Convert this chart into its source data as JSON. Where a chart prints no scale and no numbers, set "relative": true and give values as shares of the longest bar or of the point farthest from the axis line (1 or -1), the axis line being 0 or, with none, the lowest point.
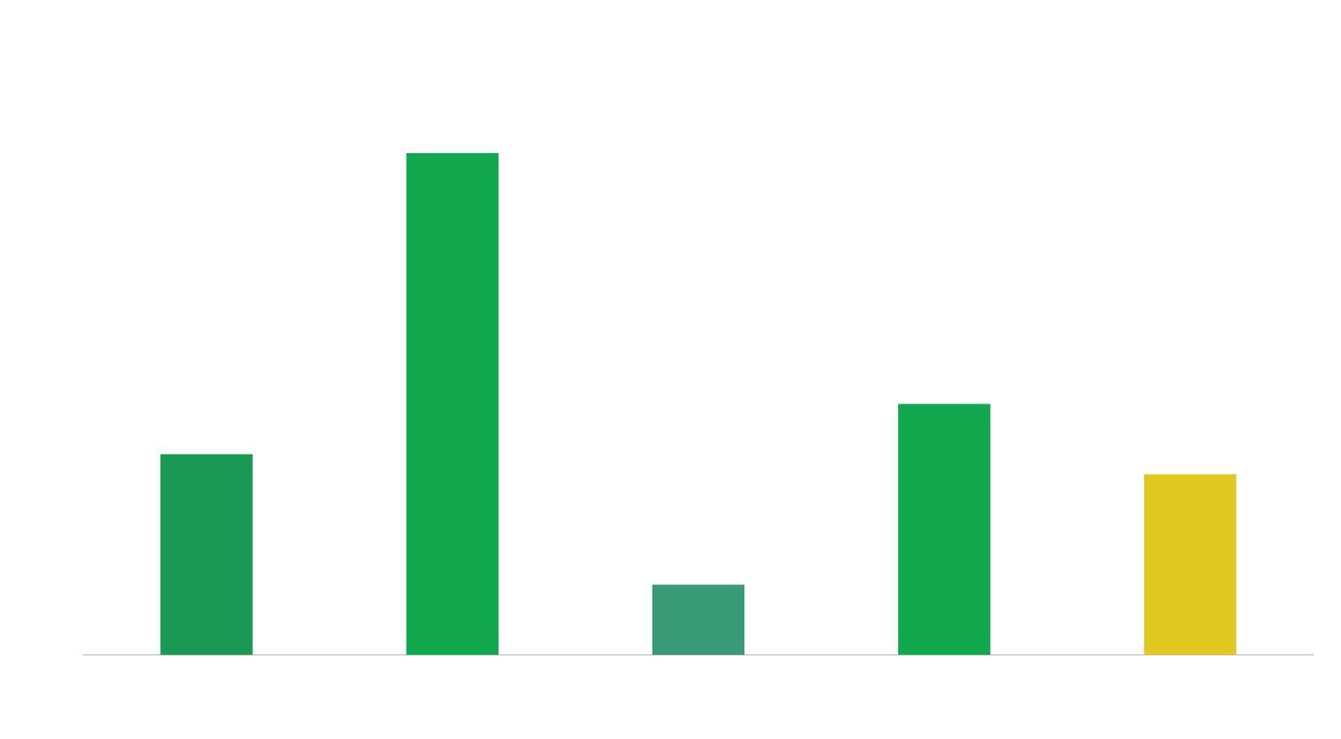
{
  "chart_data": {
    "type": "bar",
    "relative": true,
    "categories": [
      null,
      null,
      null,
      null,
      null
    ],
    "values": [
      0.4,
      1,
      0.14,
      0.5,
      0.36
    ],
    "colors": [
      "#1a9a55",
      "#12a850",
      "#3a9a78",
      "#12a850",
      "#e0c820"
    ],
    "grid": false,
    "legend": false
  }
}
